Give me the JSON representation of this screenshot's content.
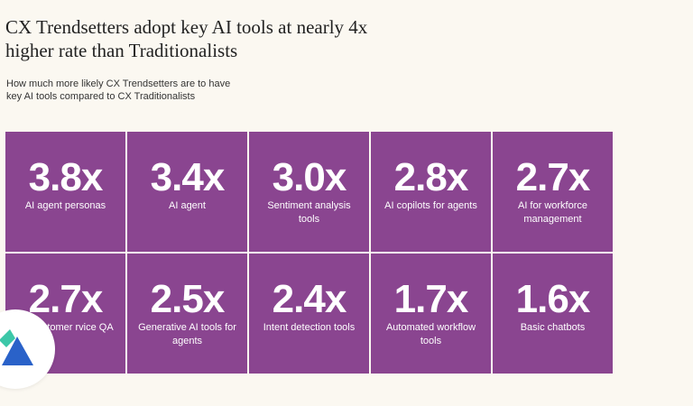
{
  "chart_data": {
    "type": "table",
    "title": "CX Trendsetters adopt key AI tools at nearly 4x higher rate than Traditionalists",
    "subtitle": "How much more likely CX Trendsetters are to have key AI tools compared to CX Traditionalists",
    "items": [
      {
        "value": "3.8x",
        "label": "AI agent personas"
      },
      {
        "value": "3.4x",
        "label": "AI agent"
      },
      {
        "value": "3.0x",
        "label": "Sentiment analysis tools"
      },
      {
        "value": "2.8x",
        "label": "AI copilots for agents"
      },
      {
        "value": "2.7x",
        "label": "AI for workforce management"
      },
      {
        "value": "2.7x",
        "label": "for customer rvice QA"
      },
      {
        "value": "2.5x",
        "label": "Generative AI tools for agents"
      },
      {
        "value": "2.4x",
        "label": "Intent detection tools"
      },
      {
        "value": "1.7x",
        "label": "Automated workflow tools"
      },
      {
        "value": "1.6x",
        "label": "Basic chatbots"
      }
    ]
  },
  "colors": {
    "background": "#fbf8f1",
    "tile": "#8a4590",
    "logo_blue": "#2a62c9",
    "logo_teal": "#3cc7a8"
  },
  "logo": {
    "icon": "triangle-logo-icon"
  }
}
